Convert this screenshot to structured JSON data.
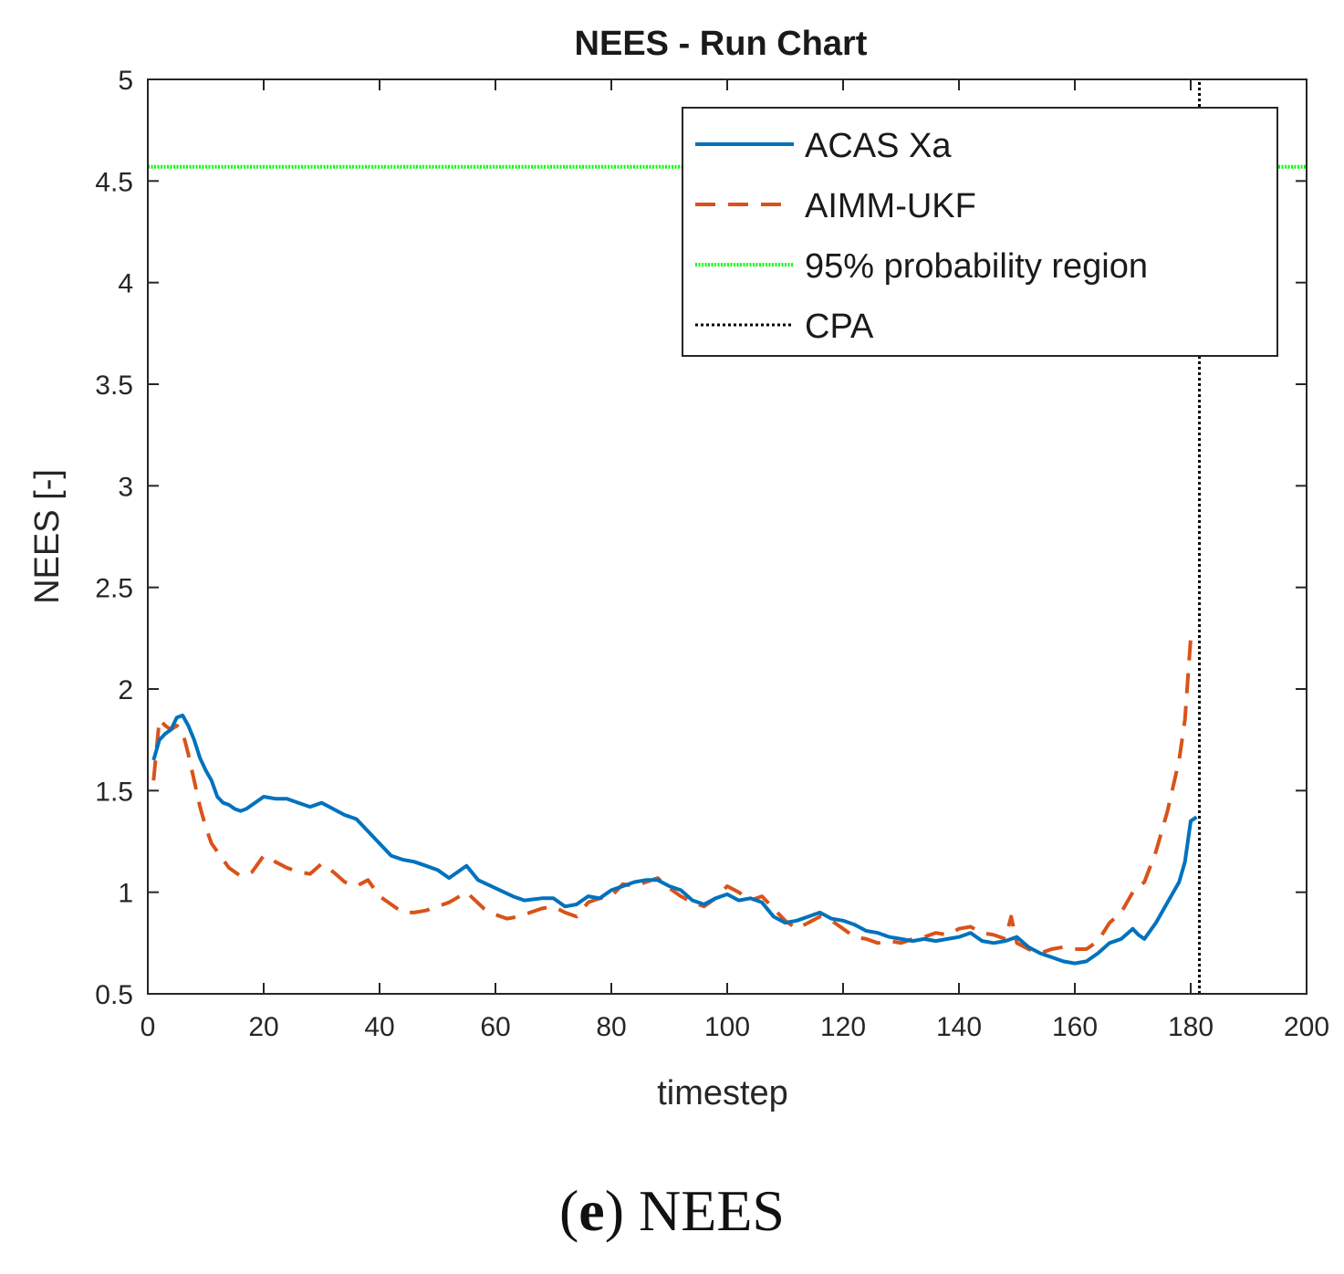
{
  "caption": {
    "label": "e",
    "text": "NEES"
  },
  "chart_data": {
    "type": "line",
    "title": "NEES - Run Chart",
    "xlabel": "timestep",
    "ylabel": "NEES [-]",
    "xlim": [
      0,
      200
    ],
    "ylim": [
      0.5,
      5
    ],
    "xticks": [
      0,
      20,
      40,
      60,
      80,
      100,
      120,
      140,
      160,
      180,
      200
    ],
    "yticks": [
      0.5,
      1,
      1.5,
      2,
      2.5,
      3,
      3.5,
      4,
      4.5,
      5
    ],
    "ytick_labels": [
      "0.5",
      "1",
      "1.5",
      "2",
      "2.5",
      "3",
      "3.5",
      "4",
      "4.5",
      "5"
    ],
    "legend_position": "top-right",
    "series": [
      {
        "name": "ACAS Xa",
        "color": "#0072BD",
        "style": "solid",
        "x": [
          1,
          2,
          3,
          4,
          5,
          6,
          7,
          8,
          9,
          10,
          11,
          12,
          13,
          14,
          15,
          16,
          17,
          18,
          19,
          20,
          22,
          24,
          26,
          28,
          30,
          32,
          34,
          36,
          38,
          40,
          42,
          44,
          46,
          48,
          50,
          52,
          55,
          57,
          60,
          63,
          65,
          68,
          70,
          72,
          74,
          76,
          78,
          80,
          82,
          84,
          86,
          88,
          90,
          92,
          94,
          96,
          98,
          100,
          102,
          104,
          106,
          108,
          110,
          112,
          114,
          116,
          118,
          120,
          122,
          124,
          126,
          128,
          130,
          132,
          134,
          136,
          138,
          140,
          142,
          144,
          146,
          148,
          150,
          152,
          154,
          156,
          158,
          160,
          162,
          164,
          166,
          168,
          170,
          171,
          172,
          174,
          176,
          178,
          179,
          180,
          181
        ],
        "y": [
          1.65,
          1.75,
          1.78,
          1.8,
          1.86,
          1.87,
          1.82,
          1.75,
          1.66,
          1.6,
          1.55,
          1.47,
          1.44,
          1.43,
          1.41,
          1.4,
          1.41,
          1.43,
          1.45,
          1.47,
          1.46,
          1.46,
          1.44,
          1.42,
          1.44,
          1.41,
          1.38,
          1.36,
          1.3,
          1.24,
          1.18,
          1.16,
          1.15,
          1.13,
          1.11,
          1.07,
          1.13,
          1.06,
          1.02,
          0.98,
          0.96,
          0.97,
          0.97,
          0.93,
          0.94,
          0.98,
          0.97,
          1.01,
          1.03,
          1.05,
          1.06,
          1.06,
          1.03,
          1.01,
          0.96,
          0.94,
          0.97,
          0.99,
          0.96,
          0.97,
          0.95,
          0.88,
          0.85,
          0.86,
          0.88,
          0.9,
          0.87,
          0.86,
          0.84,
          0.81,
          0.8,
          0.78,
          0.77,
          0.76,
          0.77,
          0.76,
          0.77,
          0.78,
          0.8,
          0.76,
          0.75,
          0.76,
          0.78,
          0.73,
          0.7,
          0.68,
          0.66,
          0.65,
          0.66,
          0.7,
          0.75,
          0.77,
          0.82,
          0.79,
          0.77,
          0.85,
          0.95,
          1.05,
          1.15,
          1.35,
          1.37
        ]
      },
      {
        "name": "AIMM-UKF",
        "color": "#D95319",
        "style": "dashed",
        "x": [
          1,
          2,
          3,
          4,
          5,
          6,
          7,
          8,
          9,
          10,
          11,
          12,
          14,
          16,
          18,
          20,
          22,
          24,
          26,
          28,
          30,
          32,
          34,
          36,
          38,
          40,
          42,
          44,
          46,
          48,
          50,
          52,
          55,
          58,
          60,
          62,
          64,
          66,
          68,
          70,
          72,
          74,
          76,
          78,
          80,
          82,
          84,
          86,
          88,
          90,
          92,
          94,
          96,
          98,
          100,
          102,
          104,
          106,
          108,
          110,
          112,
          114,
          116,
          118,
          120,
          122,
          124,
          126,
          128,
          130,
          132,
          134,
          136,
          138,
          140,
          142,
          144,
          146,
          148,
          149,
          150,
          152,
          154,
          156,
          158,
          160,
          162,
          164,
          166,
          168,
          170,
          172,
          174,
          176,
          178,
          179,
          180
        ],
        "y": [
          1.55,
          1.85,
          1.82,
          1.8,
          1.82,
          1.79,
          1.68,
          1.55,
          1.42,
          1.32,
          1.24,
          1.2,
          1.12,
          1.08,
          1.1,
          1.18,
          1.15,
          1.12,
          1.1,
          1.09,
          1.14,
          1.1,
          1.05,
          1.03,
          1.06,
          0.98,
          0.94,
          0.9,
          0.9,
          0.91,
          0.93,
          0.95,
          1.0,
          0.92,
          0.89,
          0.87,
          0.88,
          0.9,
          0.92,
          0.93,
          0.9,
          0.88,
          0.95,
          0.97,
          0.98,
          1.04,
          1.03,
          1.05,
          1.07,
          1.02,
          0.98,
          0.95,
          0.93,
          0.97,
          1.03,
          1.0,
          0.96,
          0.98,
          0.92,
          0.86,
          0.82,
          0.85,
          0.88,
          0.86,
          0.82,
          0.78,
          0.77,
          0.75,
          0.76,
          0.75,
          0.77,
          0.78,
          0.8,
          0.79,
          0.82,
          0.83,
          0.8,
          0.79,
          0.77,
          0.88,
          0.75,
          0.72,
          0.7,
          0.72,
          0.73,
          0.72,
          0.72,
          0.76,
          0.85,
          0.9,
          1.0,
          1.05,
          1.2,
          1.4,
          1.65,
          1.85,
          2.25
        ]
      },
      {
        "name": "95% probability region",
        "color": "#00FF00",
        "style": "dotted-dense",
        "x": [
          0,
          200
        ],
        "y": [
          4.57,
          4.57
        ]
      },
      {
        "name": "CPA",
        "color": "#000000",
        "style": "dotted",
        "x": [
          181.5,
          181.5
        ],
        "y": [
          0.5,
          5
        ]
      }
    ]
  }
}
